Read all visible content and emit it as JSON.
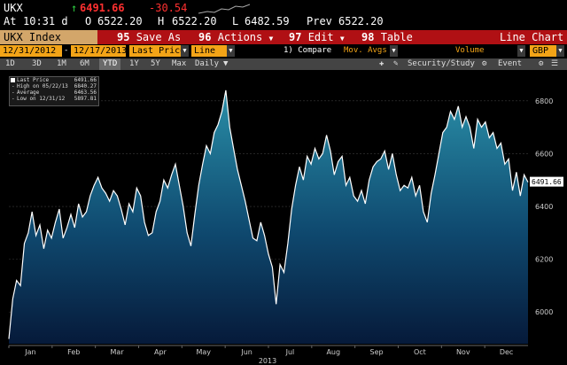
{
  "header": {
    "ticker": "UKX",
    "last": "6491.66",
    "change": "-30.54",
    "time_label": "At",
    "time": "10:31 d",
    "open_label": "O",
    "open": "6522.20",
    "high_label": "H",
    "high": "6522.20",
    "low_label": "L",
    "low": "6482.59",
    "prev_label": "Prev",
    "prev": "6522.20"
  },
  "menubar": {
    "index": "UKX Index",
    "items": [
      {
        "num": "95",
        "label": "Save As"
      },
      {
        "num": "96",
        "label": "Actions"
      },
      {
        "num": "97",
        "label": "Edit"
      },
      {
        "num": "98",
        "label": "Table"
      }
    ],
    "right": "Line Chart"
  },
  "controls": {
    "start_date": "12/31/2012",
    "end_date": "12/17/2013",
    "price_field": "Last Price",
    "style": "Line",
    "compare": "1) Compare",
    "mov_avgs": "Mov. Avgs",
    "volume": "Volume",
    "currency": "GBP"
  },
  "toolbar": {
    "periods": [
      "1D",
      "3D",
      "1M",
      "6M",
      "YTD",
      "1Y",
      "5Y",
      "Max"
    ],
    "selected": "YTD",
    "frequency": "Daily",
    "security_study": "Security/Study",
    "event": "Event"
  },
  "legend": {
    "items": [
      {
        "label": "Last Price",
        "value": "6491.66"
      },
      {
        "label": "High on 05/22/13",
        "value": "6840.27"
      },
      {
        "label": "Average",
        "value": "6463.56"
      },
      {
        "label": "Low on 12/31/12",
        "value": "5897.81"
      }
    ]
  },
  "colors": {
    "line": "#ffffff",
    "fill_top": "#2a8fa8",
    "fill_bottom": "#061a3a",
    "last_price_tag": "#ffffff"
  },
  "chart_data": {
    "type": "area",
    "title": "",
    "xlabel": "2013",
    "ylabel": "",
    "x_ticks": [
      "Jan",
      "Feb",
      "Mar",
      "Apr",
      "May",
      "Jun",
      "Jul",
      "Aug",
      "Sep",
      "Oct",
      "Nov",
      "Dec"
    ],
    "y_ticks": [
      6000,
      6200,
      6400,
      6600,
      6800
    ],
    "ylim": [
      5880,
      6900
    ],
    "last_price_label": "6491.66",
    "series": [
      {
        "values": [
          5898,
          6050,
          6120,
          6100,
          6260,
          6300,
          6380,
          6290,
          6330,
          6240,
          6310,
          6280,
          6340,
          6390,
          6280,
          6320,
          6370,
          6320,
          6410,
          6360,
          6380,
          6440,
          6480,
          6510,
          6470,
          6450,
          6420,
          6460,
          6440,
          6390,
          6330,
          6410,
          6380,
          6470,
          6440,
          6340,
          6290,
          6300,
          6380,
          6420,
          6500,
          6470,
          6520,
          6560,
          6480,
          6400,
          6300,
          6250,
          6370,
          6480,
          6560,
          6630,
          6600,
          6680,
          6710,
          6760,
          6840,
          6700,
          6620,
          6540,
          6480,
          6420,
          6350,
          6280,
          6270,
          6340,
          6290,
          6220,
          6170,
          6030,
          6180,
          6150,
          6260,
          6390,
          6480,
          6550,
          6500,
          6590,
          6560,
          6620,
          6580,
          6600,
          6670,
          6610,
          6520,
          6570,
          6590,
          6480,
          6510,
          6440,
          6420,
          6460,
          6410,
          6500,
          6550,
          6570,
          6580,
          6610,
          6540,
          6600,
          6520,
          6460,
          6480,
          6470,
          6510,
          6440,
          6480,
          6380,
          6340,
          6450,
          6520,
          6600,
          6680,
          6700,
          6760,
          6730,
          6780,
          6700,
          6740,
          6700,
          6620,
          6730,
          6700,
          6720,
          6660,
          6680,
          6620,
          6640,
          6560,
          6580,
          6460,
          6530,
          6440,
          6520,
          6492
        ]
      }
    ]
  }
}
